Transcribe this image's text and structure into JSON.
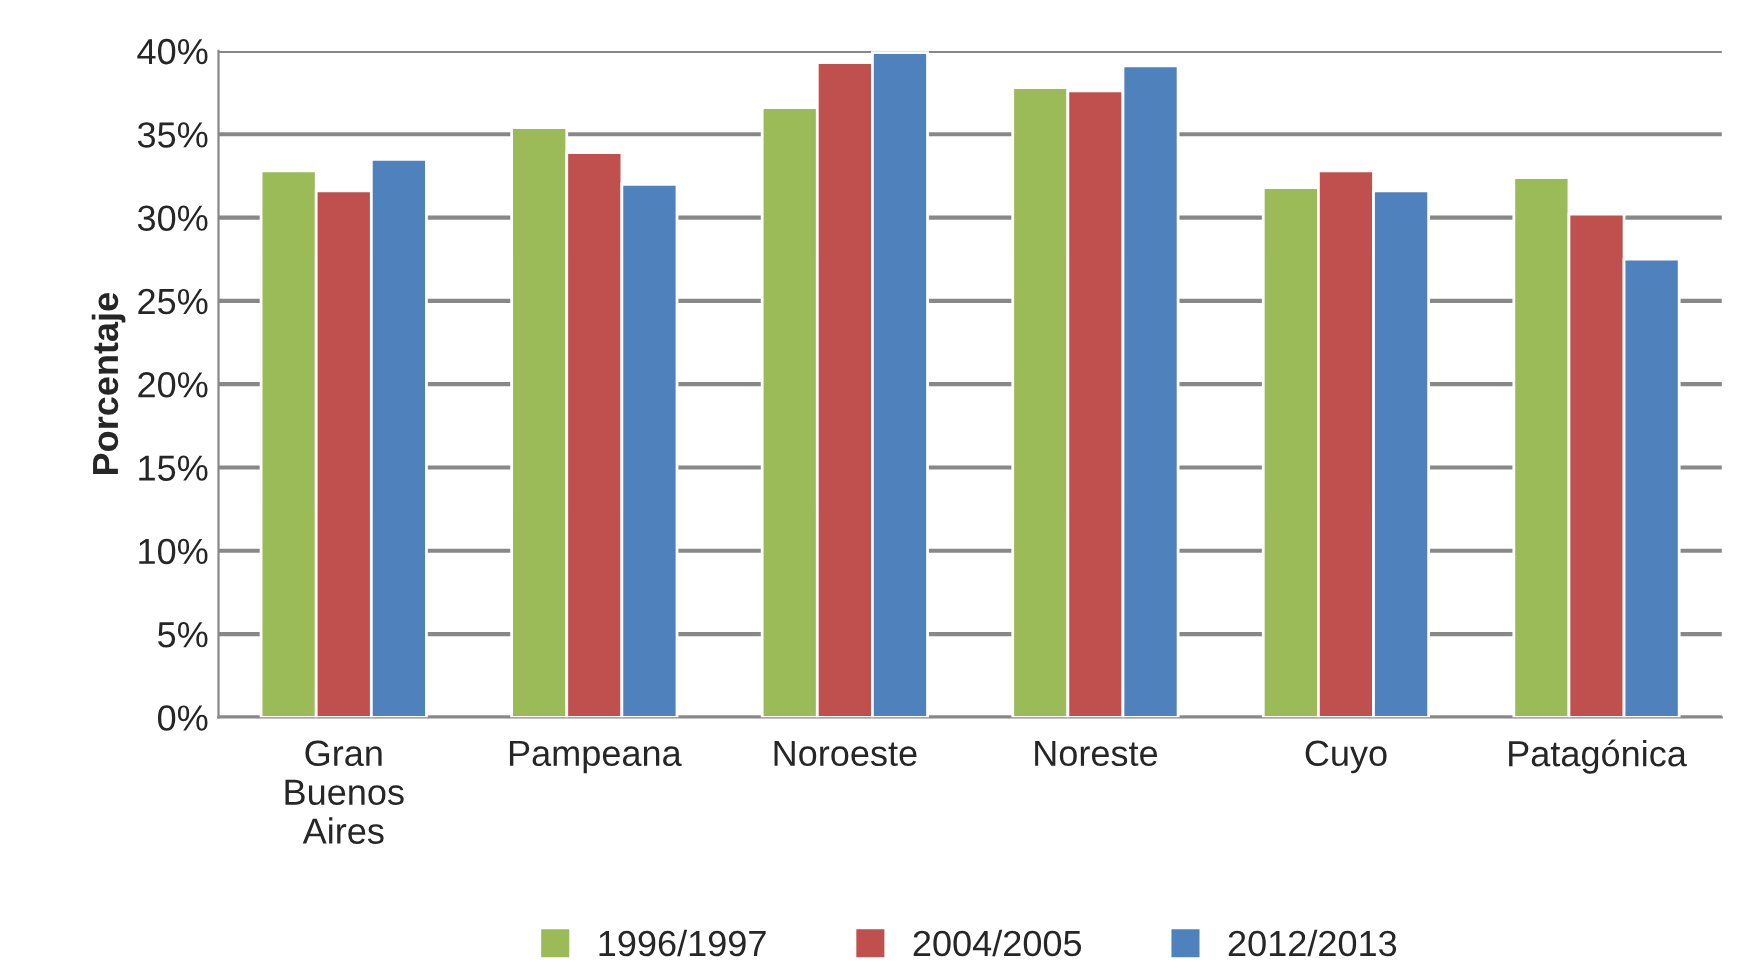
{
  "chart_data": {
    "type": "bar",
    "ylabel": "Porcentaje",
    "categories": [
      "Gran\nBuenos\nAires",
      "Pampeana",
      "Noroeste",
      "Noreste",
      "Cuyo",
      "Patagónica"
    ],
    "series": [
      {
        "name": "1996/1997",
        "color": "#9bbb59",
        "values": [
          32.8,
          35.4,
          36.6,
          37.8,
          31.8,
          32.4
        ]
      },
      {
        "name": "2004/2005",
        "color": "#c0504d",
        "values": [
          31.6,
          33.9,
          39.3,
          37.6,
          32.8,
          30.2
        ]
      },
      {
        "name": "2012/2013",
        "color": "#4f81bd",
        "values": [
          33.5,
          32.0,
          39.9,
          39.1,
          31.6,
          27.5
        ]
      }
    ],
    "ylim": [
      0,
      40
    ],
    "yticks": [
      {
        "value": 0,
        "label": "0%"
      },
      {
        "value": 5,
        "label": "5%"
      },
      {
        "value": 10,
        "label": "10%"
      },
      {
        "value": 15,
        "label": "15%"
      },
      {
        "value": 20,
        "label": "20%"
      },
      {
        "value": 25,
        "label": "25%"
      },
      {
        "value": 30,
        "label": "30%"
      },
      {
        "value": 35,
        "label": "35%"
      },
      {
        "value": 40,
        "label": "40%"
      }
    ],
    "grid": "y",
    "legend": "bottom"
  }
}
